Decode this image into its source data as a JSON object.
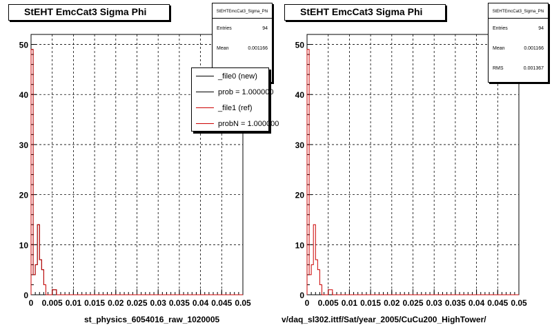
{
  "footer_left": "",
  "chart_data": [
    {
      "type": "histogram",
      "title": "StEHT EmcCat3 Sigma Phi",
      "xlabel": "st_physics_6054016_raw_1020005",
      "ylabel": "",
      "xlim": [
        0,
        0.05
      ],
      "ylim": [
        0,
        52
      ],
      "xticks": [
        "0",
        "0.005",
        "0.01",
        "0.015",
        "0.02",
        "0.025",
        "0.03",
        "0.035",
        "0.04",
        "0.045",
        "0.05"
      ],
      "yticks": [
        "0",
        "10",
        "20",
        "30",
        "40",
        "50"
      ],
      "grid": true,
      "bin_width": 0.0005,
      "series": [
        {
          "name": "_file0 (new)",
          "color": "#000000",
          "values": [
            49,
            4,
            6,
            14,
            7,
            5,
            2,
            0,
            0,
            0,
            1,
            1,
            0,
            0,
            0,
            0,
            0,
            0,
            0,
            0
          ]
        },
        {
          "name": "_file1 (ref)",
          "color": "#cc0000",
          "values": [
            49,
            4,
            6,
            14,
            7,
            5,
            2,
            0,
            0,
            0,
            1,
            1,
            0,
            0,
            0,
            0,
            0,
            0,
            0,
            0
          ]
        }
      ],
      "stats": {
        "name": "StEHTEmcCat3_Sigma_Phi",
        "rows": [
          {
            "label": "Entries",
            "value": "94"
          },
          {
            "label": "Mean",
            "value": "0.001166"
          }
        ]
      },
      "legend": [
        "_file0 (new)",
        "prob = 1.000000",
        "_file1 (ref)",
        "probN = 1.000000"
      ],
      "legend_colors": [
        "#000000",
        "#000000",
        "#cc0000",
        "#cc0000"
      ]
    },
    {
      "type": "histogram",
      "title": "StEHT EmcCat3 Sigma Phi",
      "xlabel": "v/daq_sl302.ittf/Sat/year_2005/CuCu200_HighTower/",
      "ylabel": "",
      "xlim": [
        0,
        0.05
      ],
      "ylim": [
        0,
        52
      ],
      "xticks": [
        "0",
        "0.005",
        "0.01",
        "0.015",
        "0.02",
        "0.025",
        "0.03",
        "0.035",
        "0.04",
        "0.045",
        "0.05"
      ],
      "yticks": [
        "0",
        "10",
        "20",
        "30",
        "40",
        "50"
      ],
      "grid": true,
      "bin_width": 0.0005,
      "series": [
        {
          "name": "",
          "color": "#cc0000",
          "values": [
            49,
            4,
            6,
            14,
            7,
            5,
            2,
            0,
            0,
            0,
            1,
            1,
            0,
            0,
            0,
            0,
            0,
            0,
            0,
            0
          ]
        }
      ],
      "stats": {
        "name": "StEHTEmcCat3_Sigma_Phi",
        "rows": [
          {
            "label": "Entries",
            "value": "94"
          },
          {
            "label": "Mean",
            "value": "0.001166"
          },
          {
            "label": "RMS",
            "value": "0.001367"
          }
        ]
      }
    }
  ]
}
